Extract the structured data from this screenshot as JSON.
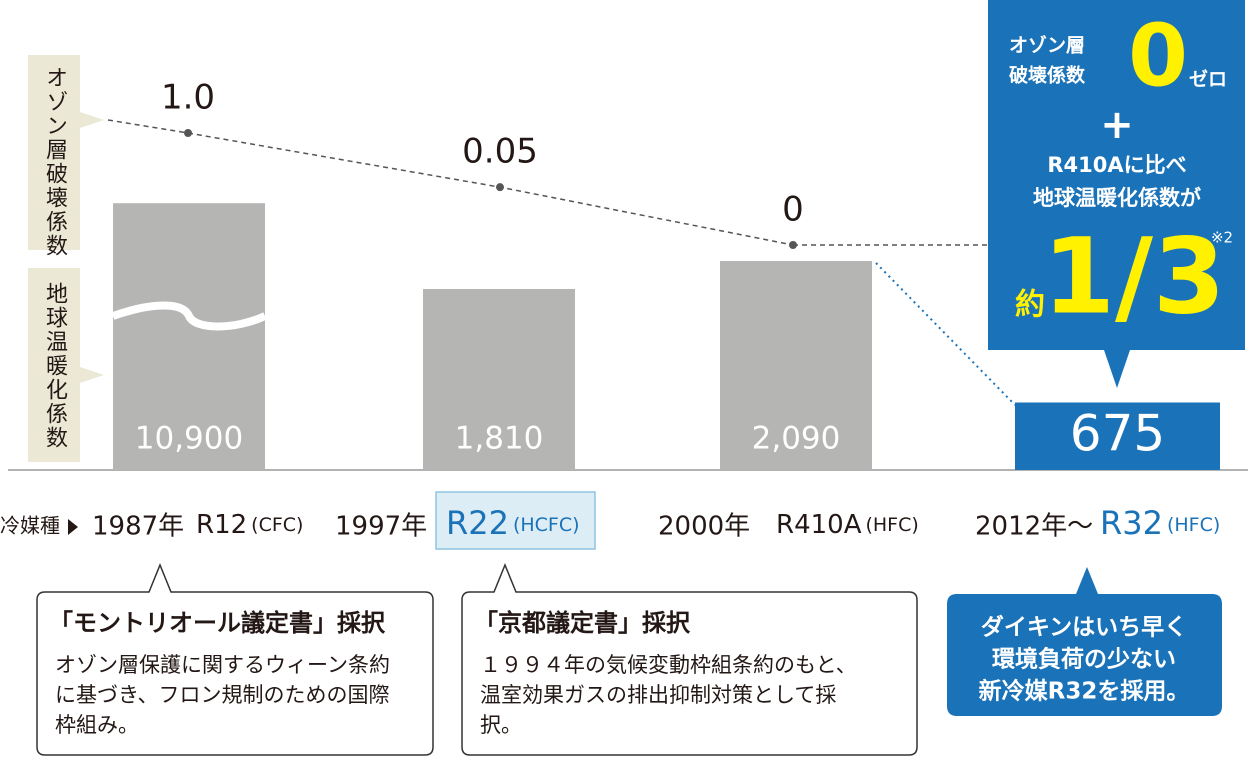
{
  "chart_data": {
    "type": "bar",
    "x_label": "冷媒種",
    "categories": [
      "R12",
      "R22",
      "R410A",
      "R32"
    ],
    "years": [
      "1987年",
      "1997年",
      "2000年",
      "2012年～"
    ],
    "classes": [
      "(CFC)",
      "(HCFC)",
      "(HFC)",
      "(HFC)"
    ],
    "highlight_indices": [
      1,
      3
    ],
    "highlight_color": "#1a72b8",
    "series": [
      {
        "name": "地球温暖化係数",
        "color": "#b5b5b3",
        "values": [
          10900,
          1810,
          2090,
          675
        ],
        "value_labels": [
          "10,900",
          "1,810",
          "2,090",
          "675"
        ]
      },
      {
        "name": "オゾン層破壊係数",
        "type": "line",
        "axis": "y2",
        "color": "#555555",
        "values": [
          1,
          0.05,
          0,
          null
        ],
        "value_labels": [
          "1.0",
          "0.05",
          "0",
          null
        ]
      }
    ]
  },
  "notes": [
    {
      "title": "「モントリオール議定書」採択",
      "lines": [
        "オゾン層保護に関するウィーン条約",
        "に基づき、フロン規制のための国際",
        "枠組み。"
      ]
    },
    {
      "title": "「京都議定書」採択",
      "lines": [
        "１９９４年の気候変動枠組条約のもと、",
        "温室効果ガスの排出抑制対策として採",
        "択。"
      ]
    },
    {
      "lines": [
        "ダイキンはいち早く",
        "環境負荷の少ない",
        "新冷媒R32を採用。"
      ]
    }
  ],
  "callout": {
    "odp_label": [
      "オゾン層",
      "破壊係数"
    ],
    "odp_value": "0",
    "odp_reading": "ゼロ",
    "plus": "+",
    "lines": [
      "R410Aに比べ",
      "地球温暖化係数が"
    ],
    "footnote": "※2",
    "approx": "約",
    "ratio": "1/3"
  }
}
